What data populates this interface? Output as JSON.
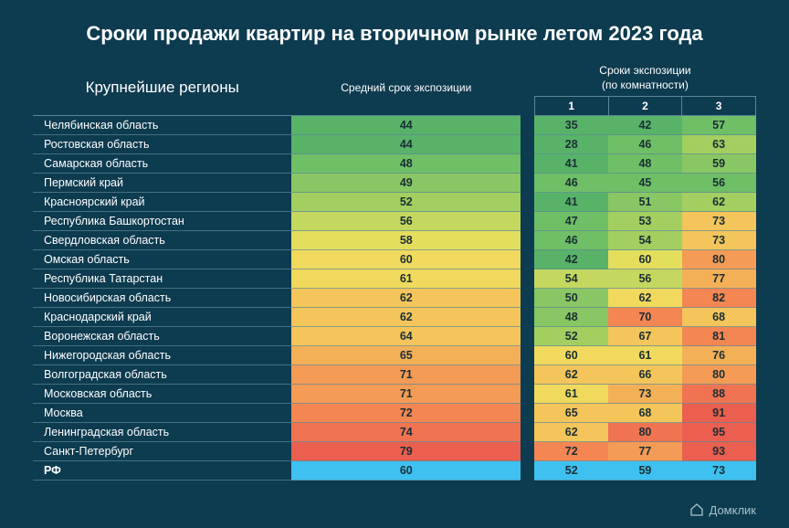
{
  "title": "Сроки продажи квартир на вторичном рынке летом 2023 года",
  "headers": {
    "region": "Крупнейшие регионы",
    "avg": "Средний срок экспозиции",
    "rooms_group_line1": "Сроки экспозиции",
    "rooms_group_line2": "(по комнатности)",
    "room_cols": [
      "1",
      "2",
      "3"
    ]
  },
  "colors": {
    "background": "#0d3b4f",
    "text": "#ffffff",
    "cell_text": "#1a2e35",
    "grid": "#5c8798",
    "summary_bg": "#3ec1f0",
    "scale": {
      "g1": "#58b368",
      "g2": "#6fbf66",
      "g3": "#88c763",
      "g4": "#a3cf61",
      "y1": "#c4d85f",
      "y2": "#e4de5d",
      "y3": "#f0d95c",
      "o1": "#f3c55a",
      "o2": "#f4b057",
      "o3": "#f49b55",
      "r1": "#f48653",
      "r2": "#f07452",
      "r3": "#ea5f4f"
    }
  },
  "rows": [
    {
      "region": "Челябинская область",
      "avg": {
        "v": 44,
        "c": "g1"
      },
      "r1": {
        "v": 35,
        "c": "g1"
      },
      "r2": {
        "v": 42,
        "c": "g1"
      },
      "r3": {
        "v": 57,
        "c": "g2"
      }
    },
    {
      "region": "Ростовская область",
      "avg": {
        "v": 44,
        "c": "g1"
      },
      "r1": {
        "v": 28,
        "c": "g1"
      },
      "r2": {
        "v": 46,
        "c": "g2"
      },
      "r3": {
        "v": 63,
        "c": "g4"
      }
    },
    {
      "region": "Самарская область",
      "avg": {
        "v": 48,
        "c": "g2"
      },
      "r1": {
        "v": 41,
        "c": "g1"
      },
      "r2": {
        "v": 48,
        "c": "g2"
      },
      "r3": {
        "v": 59,
        "c": "g3"
      }
    },
    {
      "region": "Пермский край",
      "avg": {
        "v": 49,
        "c": "g3"
      },
      "r1": {
        "v": 46,
        "c": "g2"
      },
      "r2": {
        "v": 45,
        "c": "g2"
      },
      "r3": {
        "v": 56,
        "c": "g2"
      }
    },
    {
      "region": "Красноярский край",
      "avg": {
        "v": 52,
        "c": "g4"
      },
      "r1": {
        "v": 41,
        "c": "g1"
      },
      "r2": {
        "v": 51,
        "c": "g3"
      },
      "r3": {
        "v": 62,
        "c": "g4"
      }
    },
    {
      "region": "Республика Башкортостан",
      "avg": {
        "v": 56,
        "c": "y1"
      },
      "r1": {
        "v": 47,
        "c": "g2"
      },
      "r2": {
        "v": 53,
        "c": "g4"
      },
      "r3": {
        "v": 73,
        "c": "o1"
      }
    },
    {
      "region": "Свердловская область",
      "avg": {
        "v": 58,
        "c": "y2"
      },
      "r1": {
        "v": 46,
        "c": "g2"
      },
      "r2": {
        "v": 54,
        "c": "g4"
      },
      "r3": {
        "v": 73,
        "c": "o1"
      }
    },
    {
      "region": "Омская область",
      "avg": {
        "v": 60,
        "c": "y3"
      },
      "r1": {
        "v": 42,
        "c": "g1"
      },
      "r2": {
        "v": 60,
        "c": "y2"
      },
      "r3": {
        "v": 80,
        "c": "o3"
      }
    },
    {
      "region": "Республика Татарстан",
      "avg": {
        "v": 61,
        "c": "y3"
      },
      "r1": {
        "v": 54,
        "c": "y1"
      },
      "r2": {
        "v": 56,
        "c": "y1"
      },
      "r3": {
        "v": 77,
        "c": "o2"
      }
    },
    {
      "region": "Новосибирская область",
      "avg": {
        "v": 62,
        "c": "o1"
      },
      "r1": {
        "v": 50,
        "c": "g3"
      },
      "r2": {
        "v": 62,
        "c": "y3"
      },
      "r3": {
        "v": 82,
        "c": "r1"
      }
    },
    {
      "region": "Краснодарский край",
      "avg": {
        "v": 62,
        "c": "o1"
      },
      "r1": {
        "v": 48,
        "c": "g3"
      },
      "r2": {
        "v": 70,
        "c": "r1"
      },
      "r3": {
        "v": 68,
        "c": "o1"
      }
    },
    {
      "region": "Воронежская область",
      "avg": {
        "v": 64,
        "c": "o1"
      },
      "r1": {
        "v": 52,
        "c": "g4"
      },
      "r2": {
        "v": 67,
        "c": "o1"
      },
      "r3": {
        "v": 81,
        "c": "r1"
      }
    },
    {
      "region": "Нижегородская область",
      "avg": {
        "v": 65,
        "c": "o2"
      },
      "r1": {
        "v": 60,
        "c": "y3"
      },
      "r2": {
        "v": 61,
        "c": "y3"
      },
      "r3": {
        "v": 76,
        "c": "o2"
      }
    },
    {
      "region": "Волгоградская область",
      "avg": {
        "v": 71,
        "c": "o3"
      },
      "r1": {
        "v": 62,
        "c": "o1"
      },
      "r2": {
        "v": 66,
        "c": "o1"
      },
      "r3": {
        "v": 80,
        "c": "o3"
      }
    },
    {
      "region": "Московская область",
      "avg": {
        "v": 71,
        "c": "o3"
      },
      "r1": {
        "v": 61,
        "c": "y3"
      },
      "r2": {
        "v": 73,
        "c": "o2"
      },
      "r3": {
        "v": 88,
        "c": "r2"
      }
    },
    {
      "region": "Москва",
      "avg": {
        "v": 72,
        "c": "r1"
      },
      "r1": {
        "v": 65,
        "c": "o1"
      },
      "r2": {
        "v": 68,
        "c": "o1"
      },
      "r3": {
        "v": 91,
        "c": "r3"
      }
    },
    {
      "region": "Ленинградская область",
      "avg": {
        "v": 74,
        "c": "r2"
      },
      "r1": {
        "v": 62,
        "c": "o1"
      },
      "r2": {
        "v": 80,
        "c": "r2"
      },
      "r3": {
        "v": 95,
        "c": "r3"
      }
    },
    {
      "region": "Санкт-Петербург",
      "avg": {
        "v": 79,
        "c": "r3"
      },
      "r1": {
        "v": 72,
        "c": "r1"
      },
      "r2": {
        "v": 77,
        "c": "o3"
      },
      "r3": {
        "v": 93,
        "c": "r3"
      }
    }
  ],
  "summary": {
    "region": "РФ",
    "avg": 60,
    "r1": 52,
    "r2": 59,
    "r3": 73
  },
  "logo_text": "Домклик"
}
